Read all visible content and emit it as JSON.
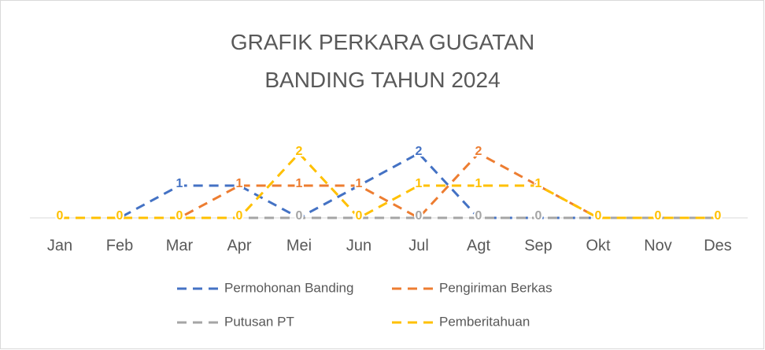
{
  "chart_data": {
    "type": "line",
    "title": "GRAFIK PERKARA GUGATAN BANDING TAHUN 2024",
    "categories": [
      "Jan",
      "Feb",
      "Mar",
      "Apr",
      "Mei",
      "Jun",
      "Jul",
      "Agt",
      "Sep",
      "Okt",
      "Nov",
      "Des"
    ],
    "series": [
      {
        "name": "Permohonan Banding",
        "color": "#4472c4",
        "values": [
          0,
          0,
          1,
          1,
          0,
          1,
          2,
          0,
          0,
          0,
          0,
          0
        ]
      },
      {
        "name": "Pengiriman Berkas",
        "color": "#ed7d31",
        "values": [
          0,
          0,
          0,
          1,
          1,
          1,
          0,
          2,
          1,
          0,
          0,
          0
        ]
      },
      {
        "name": "Putusan PT",
        "color": "#a5a5a5",
        "values": [
          0,
          0,
          0,
          0,
          0,
          0,
          0,
          0,
          0,
          0,
          0,
          0
        ]
      },
      {
        "name": "Pemberitahuan",
        "color": "#ffc000",
        "values": [
          0,
          0,
          0,
          0,
          2,
          0,
          1,
          1,
          1,
          0,
          0,
          0
        ]
      }
    ],
    "ylim": [
      0,
      2
    ],
    "data_labels": true,
    "dashed": true
  }
}
